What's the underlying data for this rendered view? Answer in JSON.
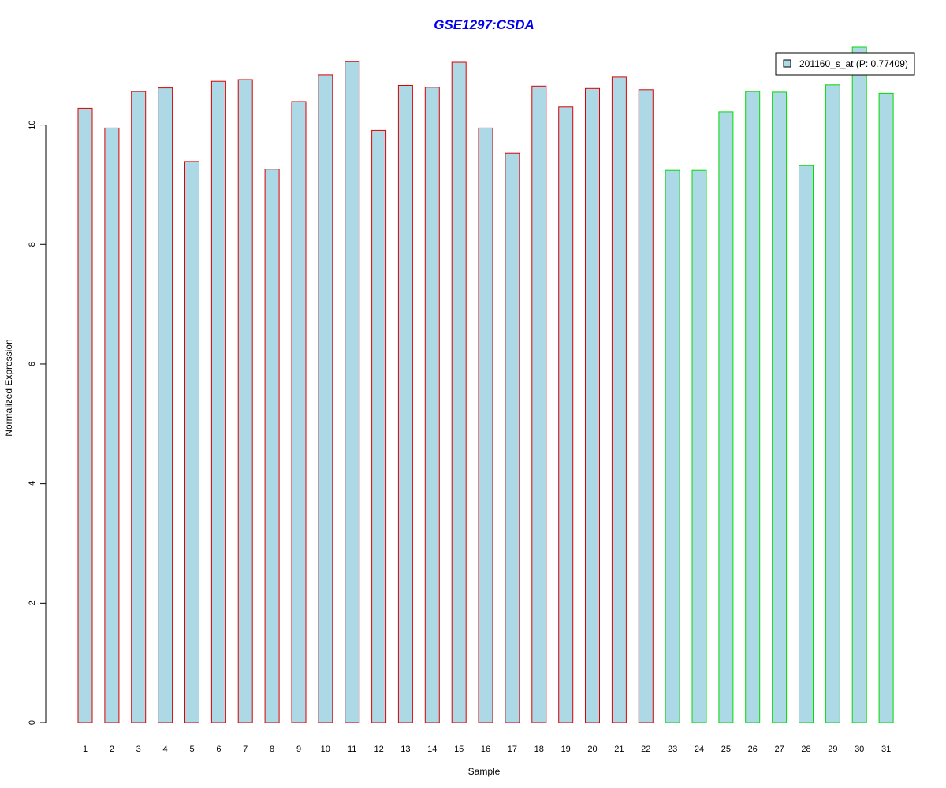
{
  "colors": {
    "title": "#0000ee",
    "bar_fill": "#add8e6",
    "group1_border": "#dd0000",
    "group2_border": "#00dd00",
    "axis": "#000000"
  },
  "chart_data": {
    "type": "bar",
    "title": "GSE1297:CSDA",
    "xlabel": "Sample",
    "ylabel": "Normalized Expression",
    "ylim": [
      0,
      11.3
    ],
    "yticks": [
      0,
      2,
      4,
      6,
      8,
      10
    ],
    "grid": false,
    "legend_placement": "top-right",
    "categories": [
      "1",
      "2",
      "3",
      "4",
      "5",
      "6",
      "7",
      "8",
      "9",
      "10",
      "11",
      "12",
      "13",
      "14",
      "15",
      "16",
      "17",
      "18",
      "19",
      "20",
      "21",
      "22",
      "23",
      "24",
      "25",
      "26",
      "27",
      "28",
      "29",
      "30",
      "31"
    ],
    "series": [
      {
        "name": "201160_s_at (P: 0.77409)",
        "values": [
          10.28,
          9.95,
          10.56,
          10.62,
          9.39,
          10.73,
          10.76,
          9.26,
          10.39,
          10.84,
          11.06,
          9.91,
          10.66,
          10.63,
          11.05,
          9.95,
          9.53,
          10.65,
          10.3,
          10.61,
          10.8,
          10.59,
          9.24,
          9.24,
          10.22,
          10.56,
          10.55,
          9.32,
          10.67,
          11.3,
          10.53
        ]
      }
    ],
    "groups": [
      1,
      1,
      1,
      1,
      1,
      1,
      1,
      1,
      1,
      1,
      1,
      1,
      1,
      1,
      1,
      1,
      1,
      1,
      1,
      1,
      1,
      1,
      2,
      2,
      2,
      2,
      2,
      2,
      2,
      2,
      2
    ]
  }
}
